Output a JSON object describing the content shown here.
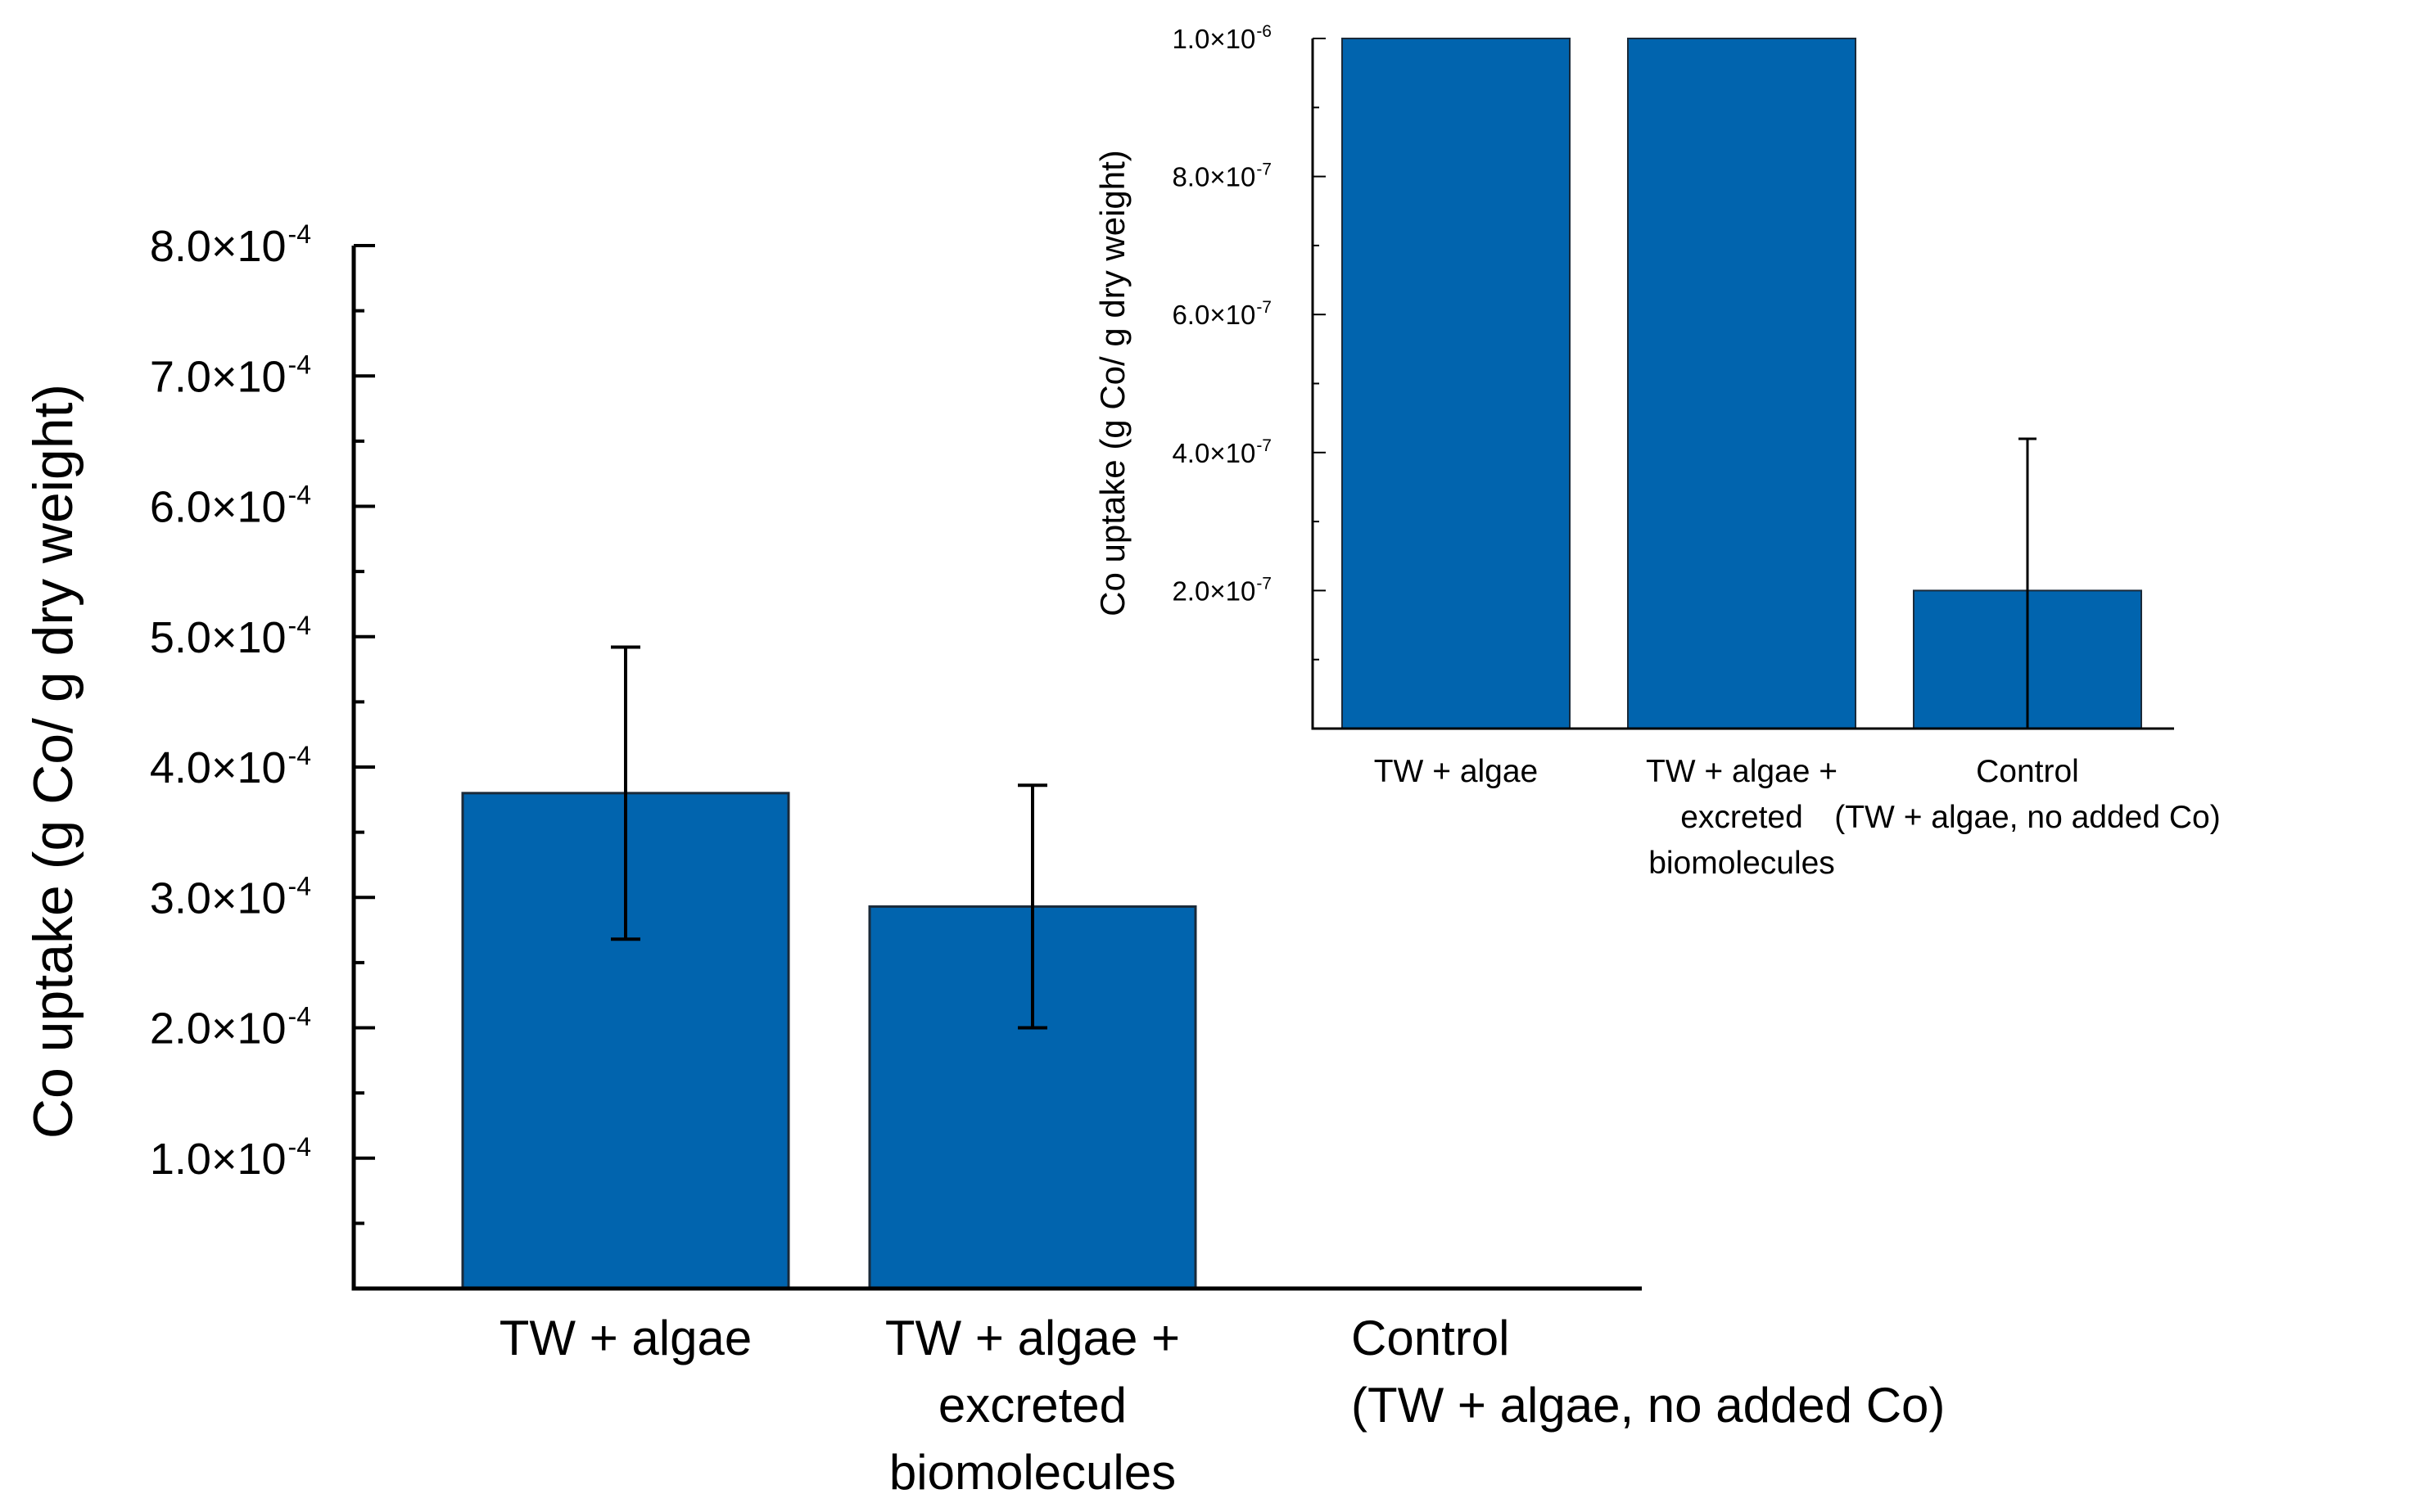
{
  "chart_data": [
    {
      "type": "bar",
      "name": "main-chart",
      "title": "",
      "xlabel": "",
      "ylabel": "Co uptake (g Co/ g dry weight)",
      "ylim": [
        0,
        0.0008
      ],
      "yticks": [
        {
          "value": 0.0001,
          "mantissa": "1.0×10",
          "exp": "-4"
        },
        {
          "value": 0.0002,
          "mantissa": "2.0×10",
          "exp": "-4"
        },
        {
          "value": 0.0003,
          "mantissa": "3.0×10",
          "exp": "-4"
        },
        {
          "value": 0.0004,
          "mantissa": "4.0×10",
          "exp": "-4"
        },
        {
          "value": 0.0005,
          "mantissa": "5.0×10",
          "exp": "-4"
        },
        {
          "value": 0.0006,
          "mantissa": "6.0×10",
          "exp": "-4"
        },
        {
          "value": 0.0007,
          "mantissa": "7.0×10",
          "exp": "-4"
        },
        {
          "value": 0.0008,
          "mantissa": "8.0×10",
          "exp": "-4"
        }
      ],
      "categories": [
        {
          "lines": [
            "TW + algae"
          ]
        },
        {
          "lines": [
            "TW + algae +",
            "excreted",
            "biomolecules"
          ]
        },
        {
          "lines": [
            "Control",
            "(TW + algae,  no added  Co)"
          ]
        }
      ],
      "values": [
        0.00038,
        0.000293,
        1e-07
      ],
      "errors": [
        0.000112,
        9.3e-05,
        0
      ],
      "bar_color": "#0164AE"
    },
    {
      "type": "bar",
      "name": "inset-chart",
      "title": "",
      "xlabel": "",
      "ylabel": "Co uptake (g Co/ g dry weight)",
      "ylim": [
        0,
        1e-06
      ],
      "yticks": [
        {
          "value": 2e-07,
          "mantissa": "2.0×10",
          "exp": "-7"
        },
        {
          "value": 4e-07,
          "mantissa": "4.0×10",
          "exp": "-7"
        },
        {
          "value": 6e-07,
          "mantissa": "6.0×10",
          "exp": "-7"
        },
        {
          "value": 8e-07,
          "mantissa": "8.0×10",
          "exp": "-7"
        },
        {
          "value": 1e-06,
          "mantissa": "1.0×10",
          "exp": "-6"
        }
      ],
      "categories": [
        {
          "lines": [
            "TW + algae"
          ]
        },
        {
          "lines": [
            "TW + algae +",
            "excreted",
            "biomolecules"
          ]
        },
        {
          "lines": [
            "Control",
            "(TW + algae, no added Co)"
          ]
        }
      ],
      "values": [
        1e-06,
        1e-06,
        2e-07
      ],
      "errors": [
        0,
        0,
        2.2e-07
      ],
      "bar_color": "#0164AE"
    }
  ]
}
